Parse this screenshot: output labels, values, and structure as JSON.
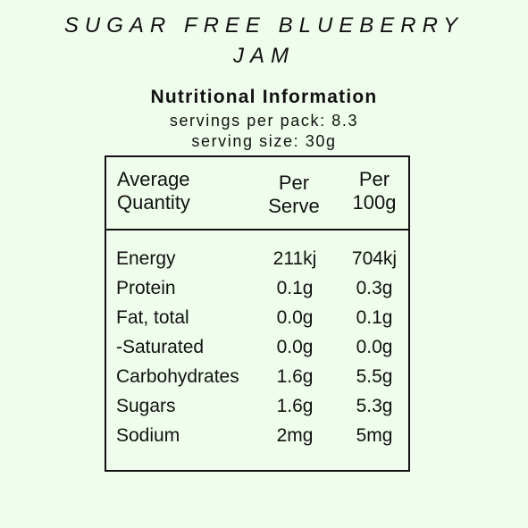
{
  "product": {
    "title_line1": "SUGAR FREE BLUEBERRY",
    "title_line2": "JAM"
  },
  "panel": {
    "heading": "Nutritional Information",
    "servings_per_pack": "servings per pack: 8.3",
    "serving_size": "serving size: 30g"
  },
  "table": {
    "headers": {
      "quantity": [
        "Average",
        "Quantity"
      ],
      "per_serve": [
        "Per",
        "Serve"
      ],
      "per_100g": [
        "Per",
        "100g"
      ]
    },
    "rows": [
      {
        "name": "Energy",
        "per_serve": "211kj",
        "per_100g": "704kj"
      },
      {
        "name": "Protein",
        "per_serve": "0.1g",
        "per_100g": "0.3g"
      },
      {
        "name": "Fat, total",
        "per_serve": "0.0g",
        "per_100g": "0.1g"
      },
      {
        "name": "-Saturated",
        "per_serve": "0.0g",
        "per_100g": "0.0g"
      },
      {
        "name": "Carbohydrates",
        "per_serve": "1.6g",
        "per_100g": "5.5g"
      },
      {
        "name": "Sugars",
        "per_serve": "1.6g",
        "per_100g": "5.3g"
      },
      {
        "name": "Sodium",
        "per_serve": "2mg",
        "per_100g": "5mg"
      }
    ]
  },
  "colors": {
    "background": "#effdec",
    "text": "#111111"
  }
}
